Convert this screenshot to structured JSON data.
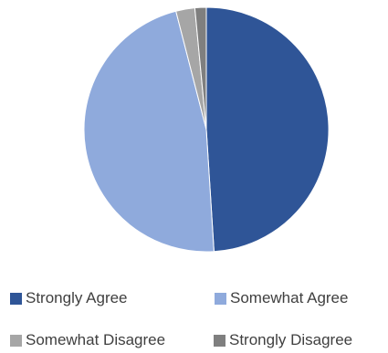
{
  "chart_data": {
    "type": "pie",
    "categories": [
      "Strongly Agree",
      "Somewhat Agree",
      "Somewhat Disagree",
      "Strongly Disagree"
    ],
    "values": [
      49,
      47,
      2.5,
      1.5
    ],
    "colors": [
      "#2f5597",
      "#8faadc",
      "#a6a6a6",
      "#7f7f7f"
    ],
    "legend_position": "bottom",
    "title": ""
  }
}
